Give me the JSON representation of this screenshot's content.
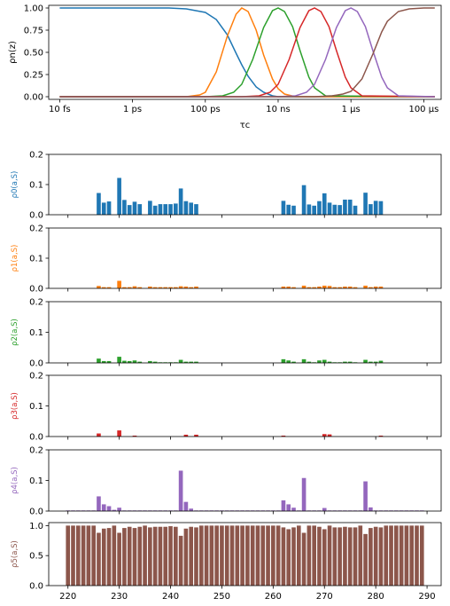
{
  "colors": {
    "c0": "#1f77b4",
    "c1": "#ff7f0e",
    "c2": "#2ca02c",
    "c3": "#d62728",
    "c4": "#9467bd",
    "c5": "#8c564b"
  },
  "chart_data": [
    {
      "type": "line",
      "xlabel": "τc",
      "ylabel": "ρn(z)",
      "x_scale": "log",
      "x_unit": "s",
      "xlim": [
        5e-15,
        0.0003
      ],
      "ylim": [
        -0.03,
        1.03
      ],
      "x_ticks": [
        {
          "value": 1e-14,
          "label": "10 fs"
        },
        {
          "value": 1e-12,
          "label": "1 ps"
        },
        {
          "value": 1e-10,
          "label": "100 ps"
        },
        {
          "value": 1e-08,
          "label": "10 ns"
        },
        {
          "value": 1e-06,
          "label": "1 μs"
        },
        {
          "value": 0.0001,
          "label": "100 μs"
        }
      ],
      "y_ticks": [
        {
          "value": 0.0,
          "label": "0.00"
        },
        {
          "value": 0.25,
          "label": "0.25"
        },
        {
          "value": 0.5,
          "label": "0.50"
        },
        {
          "value": 0.75,
          "label": "0.75"
        },
        {
          "value": 1.0,
          "label": "1.00"
        }
      ],
      "series": [
        {
          "color": "#1f77b4",
          "x": [
            1e-14,
            1e-12,
            1e-11,
            3e-11,
            1e-10,
            2e-10,
            4e-10,
            7e-10,
            1e-09,
            1.5e-09,
            2.5e-09,
            4e-09,
            7e-09,
            1e-08,
            1e-07,
            0.0002
          ],
          "y": [
            1.0,
            1.0,
            1.0,
            0.99,
            0.95,
            0.87,
            0.7,
            0.49,
            0.36,
            0.23,
            0.11,
            0.05,
            0.01,
            0.0,
            0.0,
            0.0
          ]
        },
        {
          "color": "#ff7f0e",
          "x": [
            1e-14,
            3e-11,
            7e-11,
            1e-10,
            2e-10,
            4e-10,
            7e-10,
            1e-09,
            1.5e-09,
            2.5e-09,
            4e-09,
            7e-09,
            1e-08,
            1.5e-08,
            3e-08,
            0.0002
          ],
          "y": [
            0.0,
            0.0,
            0.02,
            0.05,
            0.28,
            0.68,
            0.93,
            1.0,
            0.96,
            0.75,
            0.47,
            0.2,
            0.09,
            0.03,
            0.0,
            0.0
          ]
        },
        {
          "color": "#2ca02c",
          "x": [
            1e-14,
            1e-10,
            3e-10,
            6e-10,
            1e-09,
            2e-09,
            4e-09,
            7e-09,
            1e-08,
            1.5e-08,
            2.5e-08,
            4e-08,
            7e-08,
            1e-07,
            2e-07,
            0.0002
          ],
          "y": [
            0.0,
            0.0,
            0.01,
            0.05,
            0.14,
            0.42,
            0.78,
            0.97,
            1.0,
            0.96,
            0.79,
            0.52,
            0.22,
            0.1,
            0.01,
            0.0
          ]
        },
        {
          "color": "#d62728",
          "x": [
            1e-14,
            1e-09,
            3e-09,
            6e-09,
            1e-08,
            2e-08,
            4e-08,
            7e-08,
            1e-07,
            1.5e-07,
            2.5e-07,
            4e-07,
            7e-07,
            1e-06,
            2e-06,
            0.0002
          ],
          "y": [
            0.0,
            0.0,
            0.01,
            0.05,
            0.14,
            0.42,
            0.78,
            0.97,
            1.0,
            0.96,
            0.79,
            0.52,
            0.22,
            0.1,
            0.01,
            0.0
          ]
        },
        {
          "color": "#9467bd",
          "x": [
            1e-14,
            1e-08,
            3e-08,
            6e-08,
            1e-07,
            2e-07,
            4e-07,
            7e-07,
            1e-06,
            1.5e-06,
            2.5e-06,
            4e-06,
            7e-06,
            1e-05,
            2e-05,
            0.0002
          ],
          "y": [
            0.0,
            0.0,
            0.01,
            0.05,
            0.14,
            0.42,
            0.78,
            0.97,
            1.0,
            0.96,
            0.79,
            0.52,
            0.22,
            0.1,
            0.01,
            0.0
          ]
        },
        {
          "color": "#8c564b",
          "x": [
            1e-14,
            1e-07,
            3e-07,
            6e-07,
            1e-06,
            2e-06,
            4e-06,
            7e-06,
            1e-05,
            2e-05,
            4e-05,
            0.0001,
            0.0002
          ],
          "y": [
            0.0,
            0.0,
            0.01,
            0.03,
            0.06,
            0.2,
            0.48,
            0.73,
            0.85,
            0.96,
            0.99,
            1.0,
            1.0
          ]
        }
      ]
    },
    {
      "type": "bar",
      "ylabel": "ρ0(a,S)",
      "color": "#1f77b4",
      "ylim": [
        0,
        0.2
      ],
      "y_ticks": [
        {
          "value": 0.0,
          "label": "0.0"
        },
        {
          "value": 0.1,
          "label": "0.1"
        },
        {
          "value": 0.2,
          "label": "0.2"
        }
      ],
      "x": [
        226,
        227,
        228,
        230,
        231,
        232,
        233,
        234,
        236,
        237,
        238,
        239,
        240,
        241,
        242,
        243,
        244,
        245,
        262,
        263,
        264,
        266,
        267,
        268,
        269,
        270,
        271,
        272,
        273,
        274,
        275,
        276,
        278,
        279,
        280,
        281
      ],
      "values": [
        0.072,
        0.04,
        0.044,
        0.122,
        0.049,
        0.032,
        0.043,
        0.035,
        0.046,
        0.03,
        0.035,
        0.035,
        0.035,
        0.037,
        0.087,
        0.045,
        0.04,
        0.035,
        0.046,
        0.033,
        0.03,
        0.098,
        0.034,
        0.03,
        0.045,
        0.071,
        0.04,
        0.033,
        0.032,
        0.05,
        0.05,
        0.03,
        0.073,
        0.035,
        0.046,
        0.045
      ]
    },
    {
      "type": "bar",
      "ylabel": "ρ1(a,S)",
      "color": "#ff7f0e",
      "ylim": [
        0,
        0.2
      ],
      "y_ticks": [
        {
          "value": 0.0,
          "label": "0.0"
        },
        {
          "value": 0.1,
          "label": "0.1"
        },
        {
          "value": 0.2,
          "label": "0.2"
        }
      ],
      "x": [
        226,
        227,
        228,
        230,
        231,
        232,
        233,
        234,
        236,
        237,
        238,
        239,
        240,
        241,
        242,
        243,
        244,
        245,
        262,
        263,
        264,
        266,
        267,
        268,
        269,
        270,
        271,
        272,
        273,
        274,
        275,
        276,
        278,
        279,
        280,
        281
      ],
      "values": [
        0.008,
        0.004,
        0.004,
        0.025,
        0.004,
        0.004,
        0.007,
        0.004,
        0.006,
        0.004,
        0.004,
        0.004,
        0.004,
        0.004,
        0.007,
        0.006,
        0.004,
        0.006,
        0.006,
        0.006,
        0.004,
        0.009,
        0.004,
        0.004,
        0.006,
        0.009,
        0.008,
        0.004,
        0.004,
        0.006,
        0.006,
        0.004,
        0.009,
        0.004,
        0.006,
        0.006
      ]
    },
    {
      "type": "bar",
      "ylabel": "ρ2(a,S)",
      "color": "#2ca02c",
      "ylim": [
        0,
        0.2
      ],
      "y_ticks": [
        {
          "value": 0.0,
          "label": "0.0"
        },
        {
          "value": 0.1,
          "label": "0.1"
        },
        {
          "value": 0.2,
          "label": "0.2"
        }
      ],
      "x": [
        226,
        227,
        228,
        230,
        231,
        232,
        233,
        234,
        236,
        237,
        238,
        239,
        240,
        241,
        242,
        243,
        244,
        245,
        262,
        263,
        264,
        266,
        267,
        268,
        269,
        270,
        271,
        272,
        273,
        274,
        275,
        276,
        278,
        279,
        280,
        281
      ],
      "values": [
        0.014,
        0.006,
        0.006,
        0.02,
        0.007,
        0.006,
        0.008,
        0.004,
        0.006,
        0.004,
        0.002,
        0.002,
        0.002,
        0.002,
        0.01,
        0.004,
        0.004,
        0.004,
        0.012,
        0.008,
        0.004,
        0.012,
        0.004,
        0.002,
        0.008,
        0.01,
        0.004,
        0.002,
        0.002,
        0.004,
        0.004,
        0.002,
        0.01,
        0.004,
        0.004,
        0.007
      ]
    },
    {
      "type": "bar",
      "ylabel": "ρ3(a,S)",
      "color": "#d62728",
      "ylim": [
        0,
        0.2
      ],
      "y_ticks": [
        {
          "value": 0.0,
          "label": "0.0"
        },
        {
          "value": 0.1,
          "label": "0.1"
        },
        {
          "value": 0.2,
          "label": "0.2"
        }
      ],
      "x": [
        226,
        230,
        233,
        243,
        245,
        262,
        270,
        271,
        281
      ],
      "values": [
        0.01,
        0.02,
        0.003,
        0.006,
        0.006,
        0.003,
        0.008,
        0.007,
        0.003
      ]
    },
    {
      "type": "bar",
      "ylabel": "ρ4(a,S)",
      "color": "#9467bd",
      "ylim": [
        0,
        0.2
      ],
      "y_ticks": [
        {
          "value": 0.0,
          "label": "0.0"
        },
        {
          "value": 0.1,
          "label": "0.1"
        },
        {
          "value": 0.2,
          "label": "0.2"
        }
      ],
      "x": [
        220,
        221,
        222,
        223,
        224,
        225,
        226,
        227,
        228,
        229,
        230,
        231,
        232,
        233,
        234,
        235,
        236,
        237,
        238,
        239,
        240,
        241,
        242,
        243,
        244,
        245,
        246,
        247,
        248,
        249,
        250,
        251,
        252,
        253,
        254,
        255,
        256,
        257,
        258,
        259,
        260,
        261,
        262,
        263,
        264,
        265,
        266,
        267,
        268,
        269,
        270,
        271,
        272,
        273,
        274,
        275,
        276,
        277,
        278,
        279,
        280,
        281,
        282,
        283,
        284,
        285,
        286,
        287,
        288,
        289
      ],
      "values": [
        0.002,
        0.002,
        0.002,
        0.002,
        0.002,
        0.002,
        0.048,
        0.022,
        0.016,
        0.004,
        0.011,
        0.002,
        0.002,
        0.002,
        0.002,
        0.002,
        0.002,
        0.002,
        0.002,
        0.002,
        0.002,
        0.002,
        0.132,
        0.03,
        0.008,
        0.002,
        0.002,
        0.002,
        0.002,
        0.002,
        0.002,
        0.002,
        0.002,
        0.002,
        0.002,
        0.002,
        0.002,
        0.002,
        0.002,
        0.002,
        0.002,
        0.002,
        0.035,
        0.022,
        0.011,
        0.002,
        0.108,
        0.002,
        0.002,
        0.002,
        0.01,
        0.002,
        0.002,
        0.002,
        0.002,
        0.002,
        0.002,
        0.002,
        0.097,
        0.012,
        0.002,
        0.002,
        0.002,
        0.002,
        0.002,
        0.002,
        0.002,
        0.002,
        0.002,
        0.002
      ]
    },
    {
      "type": "bar",
      "ylabel": "ρ5(a,S)",
      "color": "#8c564b",
      "ylim": [
        0,
        1.05
      ],
      "y_ticks": [
        {
          "value": 0.0,
          "label": "0.0"
        },
        {
          "value": 0.5,
          "label": "0.5"
        },
        {
          "value": 1.0,
          "label": "1.0"
        }
      ],
      "x_ticks": [
        220,
        230,
        240,
        250,
        260,
        270,
        280,
        290
      ],
      "x": [
        220,
        221,
        222,
        223,
        224,
        225,
        226,
        227,
        228,
        229,
        230,
        231,
        232,
        233,
        234,
        235,
        236,
        237,
        238,
        239,
        240,
        241,
        242,
        243,
        244,
        245,
        246,
        247,
        248,
        249,
        250,
        251,
        252,
        253,
        254,
        255,
        256,
        257,
        258,
        259,
        260,
        261,
        262,
        263,
        264,
        265,
        266,
        267,
        268,
        269,
        270,
        271,
        272,
        273,
        274,
        275,
        276,
        277,
        278,
        279,
        280,
        281,
        282,
        283,
        284,
        285,
        286,
        287,
        288,
        289
      ],
      "values": [
        1.0,
        1.0,
        1.0,
        1.0,
        1.0,
        1.0,
        0.88,
        0.95,
        0.96,
        1.0,
        0.88,
        0.96,
        0.98,
        0.96,
        0.98,
        1.0,
        0.97,
        0.98,
        0.98,
        0.98,
        0.99,
        0.98,
        0.83,
        0.95,
        0.98,
        0.97,
        1.0,
        1.0,
        1.0,
        1.0,
        1.0,
        1.0,
        1.0,
        1.0,
        1.0,
        1.0,
        1.0,
        1.0,
        1.0,
        1.0,
        1.0,
        1.0,
        0.97,
        0.94,
        0.97,
        1.0,
        0.88,
        1.0,
        1.0,
        0.98,
        0.94,
        1.0,
        0.97,
        0.97,
        0.98,
        0.97,
        0.97,
        1.0,
        0.86,
        0.96,
        0.98,
        0.97,
        1.0,
        1.0,
        1.0,
        1.0,
        1.0,
        1.0,
        1.0,
        1.0
      ]
    }
  ]
}
